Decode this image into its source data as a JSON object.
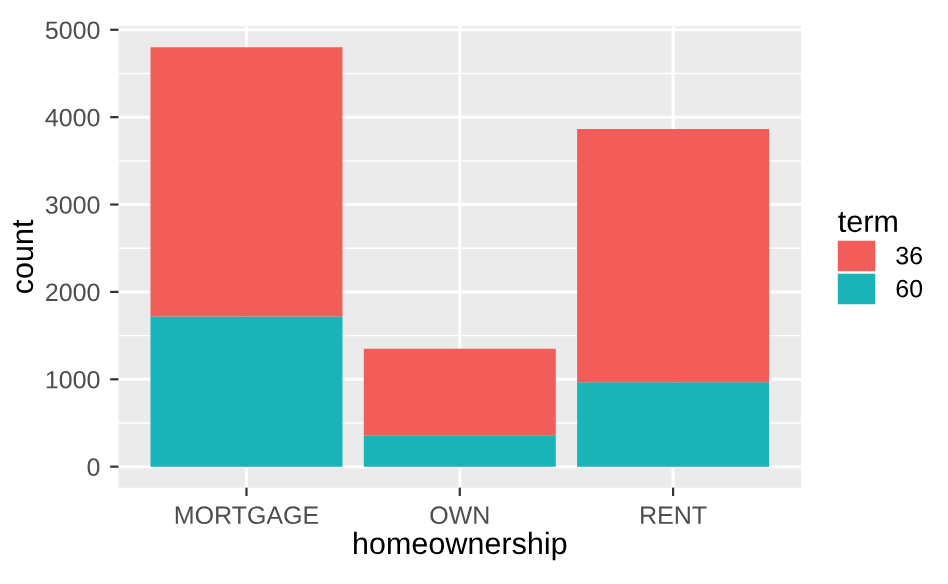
{
  "chart_data": {
    "type": "bar",
    "stacked": true,
    "xlabel": "homeownership",
    "ylabel": "count",
    "legend_title": "term",
    "categories": [
      "MORTGAGE",
      "OWN",
      "RENT"
    ],
    "series": [
      {
        "name": "60",
        "color": "#19b4b8",
        "values": [
          1720,
          355,
          965
        ]
      },
      {
        "name": "36",
        "color": "#f25d5a",
        "values": [
          3080,
          995,
          2900
        ]
      }
    ],
    "ylim": [
      -240,
      5040
    ],
    "yticks": [
      0,
      1000,
      2000,
      3000,
      4000,
      5000
    ],
    "grid": true,
    "legend": "right"
  }
}
